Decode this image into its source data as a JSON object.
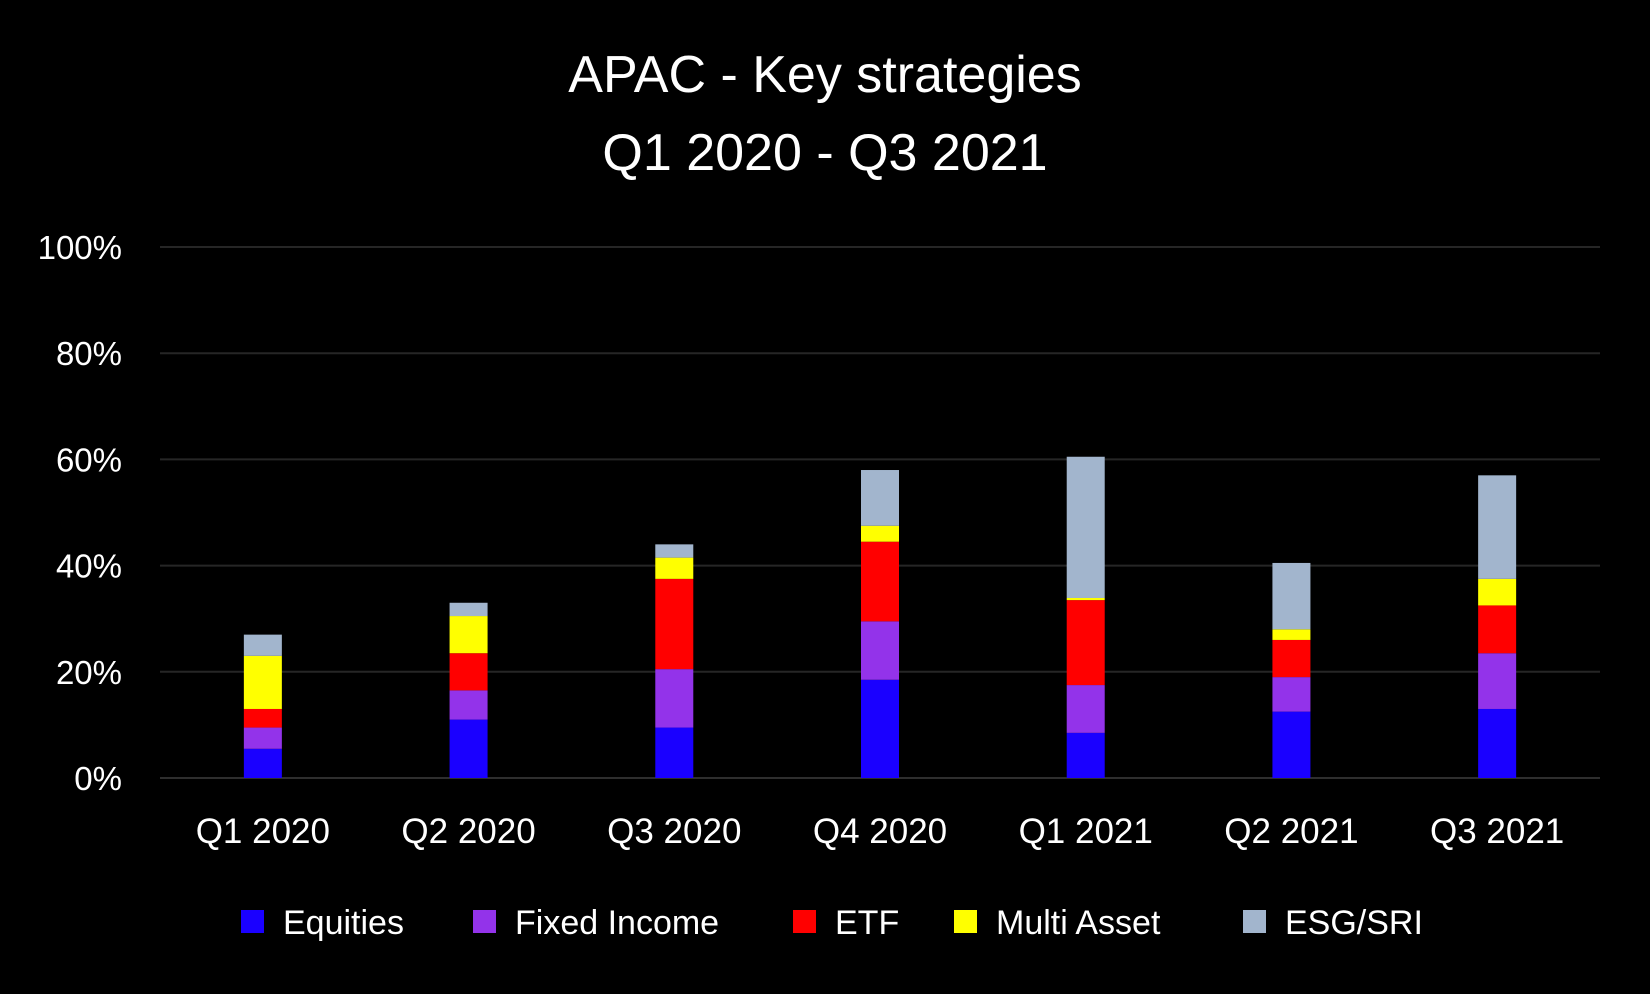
{
  "chart_data": {
    "type": "bar",
    "stacked": true,
    "title": [
      "APAC - Key strategies",
      "Q1 2020 - Q3 2021"
    ],
    "xlabel": "",
    "ylabel": "",
    "categories": [
      "Q1 2020",
      "Q2 2020",
      "Q3 2020",
      "Q4 2020",
      "Q1 2021",
      "Q2 2021",
      "Q3 2021"
    ],
    "ylim": [
      0,
      100
    ],
    "yticks": [
      "0%",
      "20%",
      "40%",
      "60%",
      "80%",
      "100%"
    ],
    "ytick_values": [
      0,
      20,
      40,
      60,
      80,
      100
    ],
    "grid": true,
    "legend_position": "bottom",
    "series": [
      {
        "name": "Equities",
        "color": "#1a00ff",
        "values": [
          5.5,
          11,
          9.5,
          18.5,
          8.5,
          12.5,
          13
        ]
      },
      {
        "name": "Fixed Income",
        "color": "#9333ea",
        "values": [
          4,
          5.5,
          11,
          11,
          9,
          6.5,
          10.5
        ]
      },
      {
        "name": "ETF",
        "color": "#ff0000",
        "values": [
          3.5,
          7,
          17,
          15,
          16,
          7,
          9
        ]
      },
      {
        "name": "Multi Asset",
        "color": "#ffff00",
        "values": [
          10,
          7,
          4,
          3,
          0.4,
          2,
          5
        ]
      },
      {
        "name": "ESG/SRI",
        "color": "#a2b5cd",
        "values": [
          4,
          2.5,
          2.5,
          10.5,
          26.6,
          12.5,
          19.5
        ]
      }
    ]
  }
}
